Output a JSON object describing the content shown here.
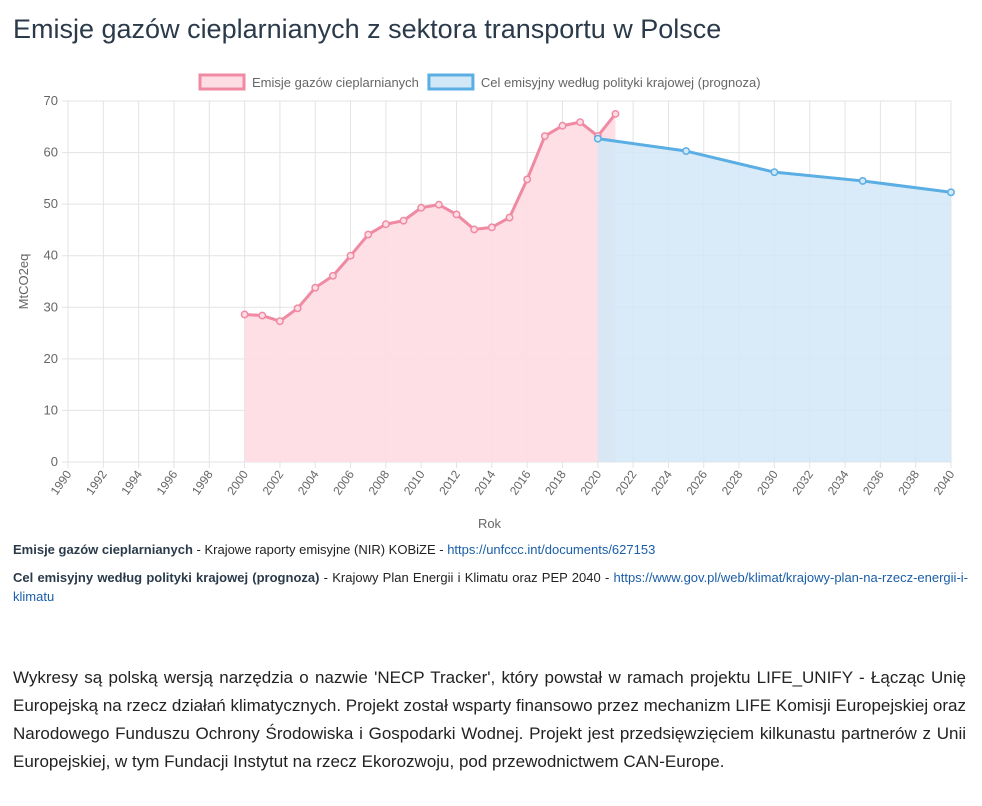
{
  "title": "Emisje gazów cieplarnianych z sektora transportu w Polsce",
  "chart_data": {
    "type": "area",
    "xlabel": "Rok",
    "ylabel": "MtCO2eq",
    "ylim": [
      0,
      70
    ],
    "yticks": [
      0,
      10,
      20,
      30,
      40,
      50,
      60,
      70
    ],
    "categories": [
      "1990",
      "1992",
      "1994",
      "1996",
      "1998",
      "2000",
      "2002",
      "2004",
      "2006",
      "2008",
      "2010",
      "2012",
      "2014",
      "2016",
      "2018",
      "2020",
      "2022",
      "2024",
      "2026",
      "2028",
      "2030",
      "2032",
      "2034",
      "2036",
      "2038",
      "2040"
    ],
    "legend_position": "top",
    "grid": true,
    "series": [
      {
        "name": "Emisje gazów cieplarnianych",
        "color": "#f08aa3",
        "fill": "#fddde4",
        "points": [
          {
            "x": 2000,
            "y": 28.6
          },
          {
            "x": 2001,
            "y": 28.4
          },
          {
            "x": 2002,
            "y": 27.3
          },
          {
            "x": 2003,
            "y": 29.8
          },
          {
            "x": 2004,
            "y": 33.8
          },
          {
            "x": 2005,
            "y": 36.1
          },
          {
            "x": 2006,
            "y": 40.0
          },
          {
            "x": 2007,
            "y": 44.1
          },
          {
            "x": 2008,
            "y": 46.1
          },
          {
            "x": 2009,
            "y": 46.8
          },
          {
            "x": 2010,
            "y": 49.3
          },
          {
            "x": 2011,
            "y": 49.9
          },
          {
            "x": 2012,
            "y": 48.0
          },
          {
            "x": 2013,
            "y": 45.1
          },
          {
            "x": 2014,
            "y": 45.5
          },
          {
            "x": 2015,
            "y": 47.4
          },
          {
            "x": 2016,
            "y": 54.8
          },
          {
            "x": 2017,
            "y": 63.2
          },
          {
            "x": 2018,
            "y": 65.2
          },
          {
            "x": 2019,
            "y": 65.9
          },
          {
            "x": 2020,
            "y": 63.2
          },
          {
            "x": 2021,
            "y": 67.5
          }
        ]
      },
      {
        "name": "Cel emisyjny według polityki krajowej (prognoza)",
        "color": "#5aaee3",
        "fill": "#d2e8f7",
        "points": [
          {
            "x": 2020,
            "y": 62.7
          },
          {
            "x": 2025,
            "y": 60.3
          },
          {
            "x": 2030,
            "y": 56.2
          },
          {
            "x": 2035,
            "y": 54.5
          },
          {
            "x": 2040,
            "y": 52.3
          }
        ]
      }
    ]
  },
  "sources": [
    {
      "name": "Emisje gazów cieplarnianych",
      "text": " - Krajowe raporty emisyjne (NIR) KOBiZE - ",
      "link": "https://unfccc.int/documents/627153"
    },
    {
      "name": "Cel emisyjny według polityki krajowej (prognoza)",
      "text": " - Krajowy Plan Energii i Klimatu oraz PEP 2040 - ",
      "link": "https://www.gov.pl/web/klimat/krajowy-plan-na-rzecz-energii-i-klimatu"
    }
  ],
  "description": "Wykresy są polską wersją narzędzia o nazwie 'NECP Tracker', który powstał w ramach projektu LIFE_UNIFY - Łącząc Unię Europejską na rzecz działań klimatycznych. Projekt został wsparty finansowo przez mechanizm LIFE Komisji Europejskiej oraz Narodowego Funduszu Ochrony Środowiska i Gospodarki Wodnej. Projekt jest przedsięwzięciem kilkunastu partnerów z Unii Europejskiej, w tym Fundacji Instytut na rzecz Ekorozwoju, pod przewodnictwem CAN-Europe."
}
